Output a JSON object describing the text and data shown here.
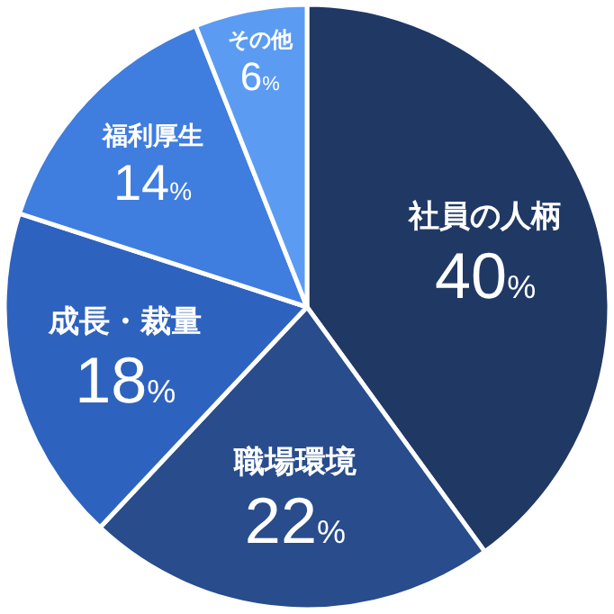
{
  "chart_data": {
    "type": "pie",
    "categories": [
      "社員の人柄",
      "職場環境",
      "成長・裁量",
      "福利厚生",
      "その他"
    ],
    "values": [
      40,
      22,
      18,
      14,
      6
    ],
    "value_labels": [
      "40%",
      "22%",
      "18%",
      "14%",
      "6%"
    ],
    "colors": [
      "#203864",
      "#284c8c",
      "#2e62bf",
      "#3f7ddf",
      "#5b9cf2"
    ]
  }
}
